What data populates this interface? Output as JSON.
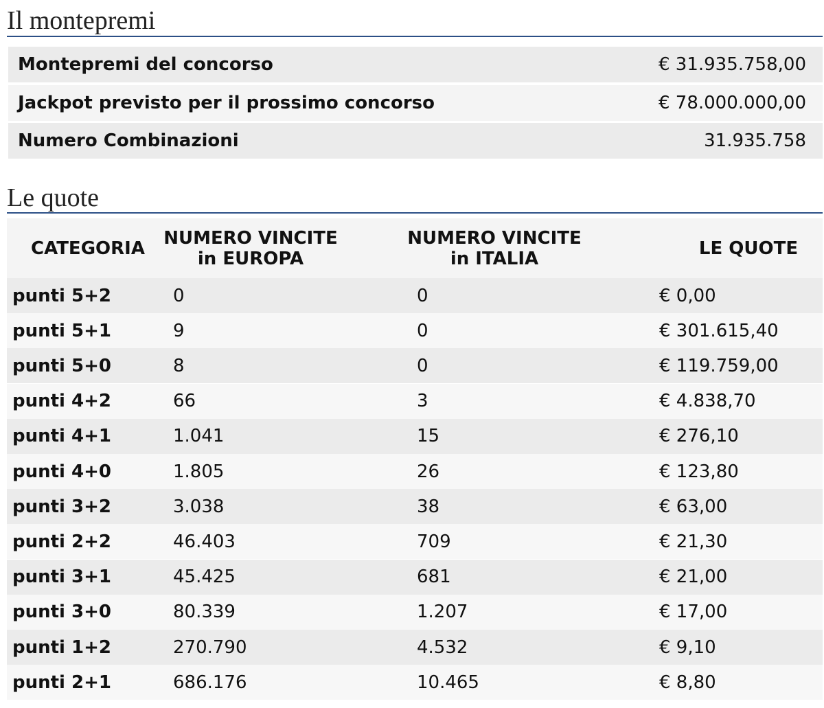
{
  "montepremi": {
    "title": "Il montepremi",
    "rows": [
      [
        "Montepremi del concorso",
        "€ 31.935.758,00"
      ],
      [
        "Jackpot previsto per il prossimo concorso",
        "€ 78.000.000,00"
      ],
      [
        "Numero Combinazioni",
        "31.935.758"
      ]
    ]
  },
  "quote": {
    "title": "Le quote",
    "header": [
      "CATEGORIA",
      "NUMERO VINCITE\nin EUROPA",
      "NUMERO VINCITE\nin ITALIA",
      "LE QUOTE"
    ],
    "rows": [
      [
        "punti 5+2",
        "0",
        "0",
        "€ 0,00"
      ],
      [
        "punti 5+1",
        "9",
        "0",
        "€ 301.615,40"
      ],
      [
        "punti 5+0",
        "8",
        "0",
        "€ 119.759,00"
      ],
      [
        "punti 4+2",
        "66",
        "3",
        "€ 4.838,70"
      ],
      [
        "punti 4+1",
        "1.041",
        "15",
        "€ 276,10"
      ],
      [
        "punti 4+0",
        "1.805",
        "26",
        "€ 123,80"
      ],
      [
        "punti 3+2",
        "3.038",
        "38",
        "€ 63,00"
      ],
      [
        "punti 2+2",
        "46.403",
        "709",
        "€ 21,30"
      ],
      [
        "punti 3+1",
        "45.425",
        "681",
        "€ 21,00"
      ],
      [
        "punti 3+0",
        "80.339",
        "1.207",
        "€ 17,00"
      ],
      [
        "punti 1+2",
        "270.790",
        "4.532",
        "€ 9,10"
      ],
      [
        "punti 2+1",
        "686.176",
        "10.465",
        "€ 8,80"
      ]
    ]
  }
}
